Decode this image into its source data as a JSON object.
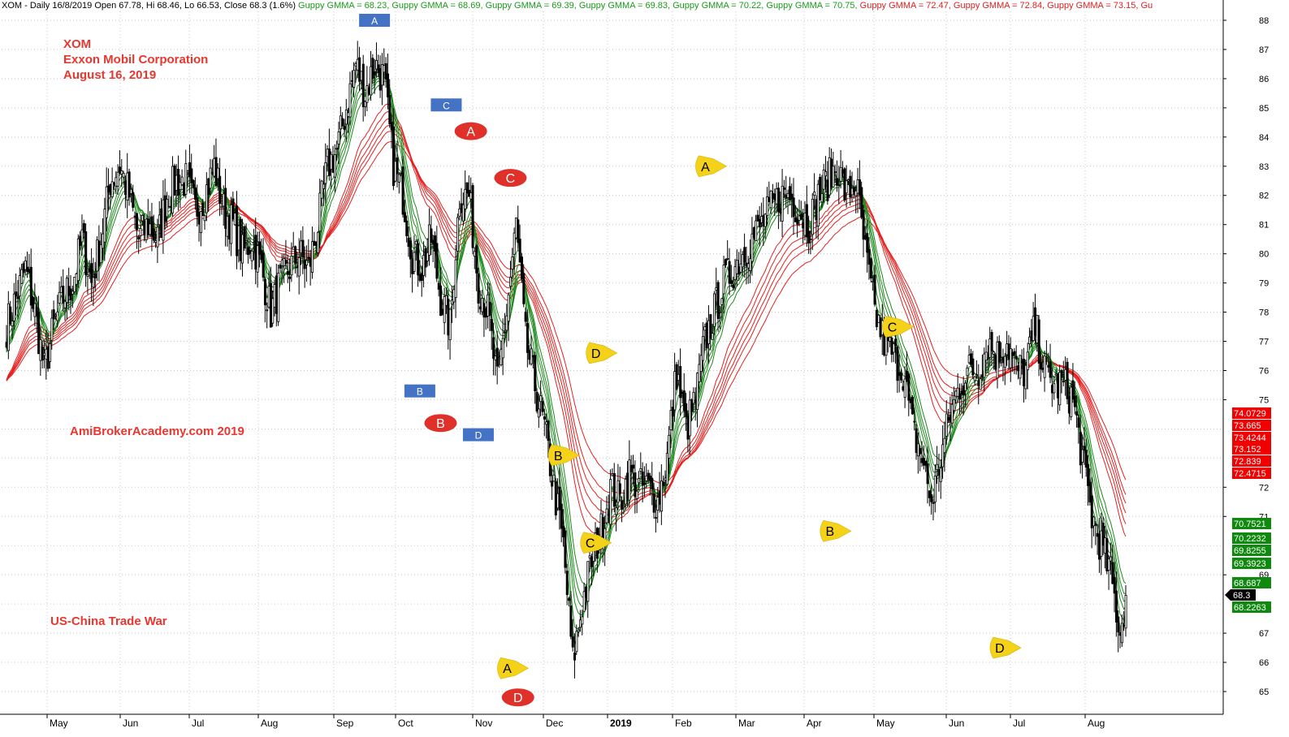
{
  "header": {
    "prefix": "XOM - Daily 16/8/2019 Open 67.78, Hi 68.46, Lo 66.53, Close 68.3 (1.6%)",
    "gmma": [
      {
        "text": " Guppy GMMA = 68.23,",
        "color": "#1a9a1a"
      },
      {
        "text": " Guppy GMMA = 68.69,",
        "color": "#1a9a1a"
      },
      {
        "text": " Guppy GMMA = 69.39,",
        "color": "#1a9a1a"
      },
      {
        "text": " Guppy GMMA = 69.83,",
        "color": "#1a9a1a"
      },
      {
        "text": " Guppy GMMA = 70.22,",
        "color": "#1a9a1a"
      },
      {
        "text": " Guppy GMMA = 70.75,",
        "color": "#1a9a1a"
      },
      {
        "text": " Guppy GMMA = 72.47,",
        "color": "#e02020"
      },
      {
        "text": " Guppy GMMA = 72.84,",
        "color": "#e02020"
      },
      {
        "text": " Guppy GMMA = 73.15,",
        "color": "#e02020"
      },
      {
        "text": " Gu",
        "color": "#e02020"
      }
    ]
  },
  "annotations": {
    "ticker": "XOM",
    "company": "Exxon Mobil Corporation",
    "date": "August 16, 2019",
    "site": "AmiBrokerAcademy.com   2019",
    "trade_war": "US-China Trade War"
  },
  "chart_data": {
    "type": "candlestick",
    "title": "XOM - Daily",
    "ylim": [
      64.5,
      88.3
    ],
    "y_ticks": [
      65,
      66,
      67,
      68,
      69,
      70,
      71,
      72,
      73,
      74,
      75,
      76,
      77,
      78,
      79,
      80,
      81,
      82,
      83,
      84,
      85,
      86,
      87,
      88
    ],
    "y_tick_labels_shown": [
      65,
      66,
      67,
      69,
      71,
      72,
      75,
      76,
      77,
      78,
      79,
      80,
      81,
      82,
      83,
      84,
      85,
      86,
      87,
      88
    ],
    "x_month_labels": [
      "May",
      "Jun",
      "Jul",
      "Aug",
      "Sep",
      "Oct",
      "Nov",
      "Dec",
      "2019",
      "Feb",
      "Mar",
      "Apr",
      "May",
      "Jun",
      "Jul",
      "Aug"
    ],
    "last_close": 68.3,
    "price_path": [
      [
        0,
        77.5
      ],
      [
        5,
        78.5
      ],
      [
        10,
        79.5
      ],
      [
        15,
        78
      ],
      [
        20,
        76
      ],
      [
        25,
        77.5
      ],
      [
        30,
        78.5
      ],
      [
        35,
        79
      ],
      [
        40,
        80.5
      ],
      [
        45,
        79
      ],
      [
        50,
        80.5
      ],
      [
        55,
        82.5
      ],
      [
        60,
        83
      ],
      [
        65,
        82
      ],
      [
        70,
        80.5
      ],
      [
        75,
        81
      ],
      [
        80,
        80.5
      ],
      [
        85,
        82
      ],
      [
        90,
        82.5
      ],
      [
        95,
        82.5
      ],
      [
        100,
        81.5
      ],
      [
        105,
        82
      ],
      [
        110,
        83
      ],
      [
        115,
        81.5
      ],
      [
        120,
        81
      ],
      [
        125,
        80
      ],
      [
        130,
        80.5
      ],
      [
        135,
        79.5
      ],
      [
        140,
        78
      ],
      [
        145,
        79
      ],
      [
        150,
        79.5
      ],
      [
        155,
        80
      ],
      [
        160,
        79.5
      ],
      [
        165,
        81
      ],
      [
        170,
        83
      ],
      [
        175,
        83.5
      ],
      [
        180,
        85
      ],
      [
        185,
        86.5
      ],
      [
        190,
        85.5
      ],
      [
        195,
        86.5
      ],
      [
        200,
        86
      ],
      [
        205,
        83
      ],
      [
        210,
        82
      ],
      [
        215,
        80
      ],
      [
        220,
        79.5
      ],
      [
        225,
        80.5
      ],
      [
        230,
        78.5
      ],
      [
        235,
        77.5
      ],
      [
        240,
        82
      ],
      [
        245,
        82
      ],
      [
        250,
        79
      ],
      [
        255,
        78
      ],
      [
        260,
        75.5
      ],
      [
        265,
        78
      ],
      [
        270,
        81
      ],
      [
        275,
        77
      ],
      [
        280,
        75.5
      ],
      [
        285,
        74
      ],
      [
        290,
        72
      ],
      [
        295,
        70
      ],
      [
        300,
        66
      ],
      [
        305,
        68
      ],
      [
        310,
        69.5
      ],
      [
        315,
        70.5
      ],
      [
        320,
        72
      ],
      [
        325,
        71.5
      ],
      [
        330,
        72.5
      ],
      [
        335,
        72
      ],
      [
        340,
        72
      ],
      [
        345,
        71.5
      ],
      [
        350,
        73
      ],
      [
        355,
        76
      ],
      [
        360,
        74
      ],
      [
        365,
        75
      ],
      [
        370,
        77
      ],
      [
        375,
        78
      ],
      [
        380,
        79
      ],
      [
        385,
        79.5
      ],
      [
        390,
        80
      ],
      [
        395,
        80.5
      ],
      [
        400,
        81
      ],
      [
        405,
        81.5
      ],
      [
        410,
        82
      ],
      [
        415,
        82
      ],
      [
        420,
        81.5
      ],
      [
        425,
        81
      ],
      [
        430,
        82
      ],
      [
        435,
        82.5
      ],
      [
        440,
        83
      ],
      [
        445,
        82
      ],
      [
        450,
        82.5
      ],
      [
        455,
        80
      ],
      [
        460,
        78
      ],
      [
        465,
        77
      ],
      [
        470,
        76.5
      ],
      [
        475,
        76
      ],
      [
        480,
        74
      ],
      [
        485,
        73
      ],
      [
        490,
        71.5
      ],
      [
        495,
        73
      ],
      [
        500,
        74.5
      ],
      [
        505,
        75.5
      ],
      [
        510,
        76
      ],
      [
        515,
        76
      ],
      [
        520,
        77
      ],
      [
        525,
        76.5
      ],
      [
        530,
        77
      ],
      [
        535,
        76
      ],
      [
        540,
        76
      ],
      [
        545,
        77.5
      ],
      [
        550,
        76
      ],
      [
        555,
        75.5
      ],
      [
        560,
        75.5
      ],
      [
        565,
        75
      ],
      [
        570,
        73
      ],
      [
        575,
        71
      ],
      [
        580,
        70
      ],
      [
        585,
        69
      ],
      [
        590,
        67
      ],
      [
        593,
        68.3
      ]
    ],
    "gmma_current": {
      "short": [
        68.2263,
        68.687,
        69.3923,
        69.8255,
        70.2232,
        70.7521
      ],
      "long": [
        72.4715,
        72.839,
        73.152,
        73.4244,
        73.665,
        74.0729
      ]
    },
    "price_tags_short": [
      "70.7521",
      "70.2232",
      "69.8255",
      "69.3923",
      "68.687",
      "68.2263"
    ],
    "price_tags_long": [
      "74.0729",
      "73.665",
      "73.4244",
      "73.152",
      "72.839",
      "72.4715"
    ],
    "last_tag": "68.3",
    "markers": [
      {
        "label": "A",
        "shape": "square",
        "color": "#4472c4",
        "day": 195,
        "y": 88.0
      },
      {
        "label": "C",
        "shape": "square",
        "color": "#4472c4",
        "day": 233,
        "y": 85.1
      },
      {
        "label": "B",
        "shape": "square",
        "color": "#4472c4",
        "day": 219,
        "y": 75.3
      },
      {
        "label": "D",
        "shape": "square",
        "color": "#4472c4",
        "day": 250,
        "y": 73.8
      },
      {
        "label": "A",
        "shape": "oval",
        "color": "#e0302a",
        "day": 246,
        "y": 84.2
      },
      {
        "label": "C",
        "shape": "oval",
        "color": "#e0302a",
        "day": 267,
        "y": 82.6
      },
      {
        "label": "B",
        "shape": "oval",
        "color": "#e0302a",
        "day": 230,
        "y": 74.2
      },
      {
        "label": "D",
        "shape": "oval",
        "color": "#e0302a",
        "day": 271,
        "y": 64.8
      },
      {
        "label": "A",
        "shape": "tag",
        "color": "#f5d21a",
        "day": 267,
        "y": 65.8
      },
      {
        "label": "B",
        "shape": "tag",
        "color": "#f5d21a",
        "day": 294,
        "y": 73.1
      },
      {
        "label": "C",
        "shape": "tag",
        "color": "#f5d21a",
        "day": 311,
        "y": 70.1
      },
      {
        "label": "D",
        "shape": "tag",
        "color": "#f5d21a",
        "day": 314,
        "y": 76.6
      },
      {
        "label": "A",
        "shape": "tag",
        "color": "#f5d21a",
        "day": 372,
        "y": 83.0
      },
      {
        "label": "B",
        "shape": "tag",
        "color": "#f5d21a",
        "day": 438,
        "y": 70.5
      },
      {
        "label": "C",
        "shape": "tag",
        "color": "#f5d21a",
        "day": 471,
        "y": 77.5
      },
      {
        "label": "D",
        "shape": "tag",
        "color": "#f5d21a",
        "day": 528,
        "y": 66.5
      }
    ]
  }
}
